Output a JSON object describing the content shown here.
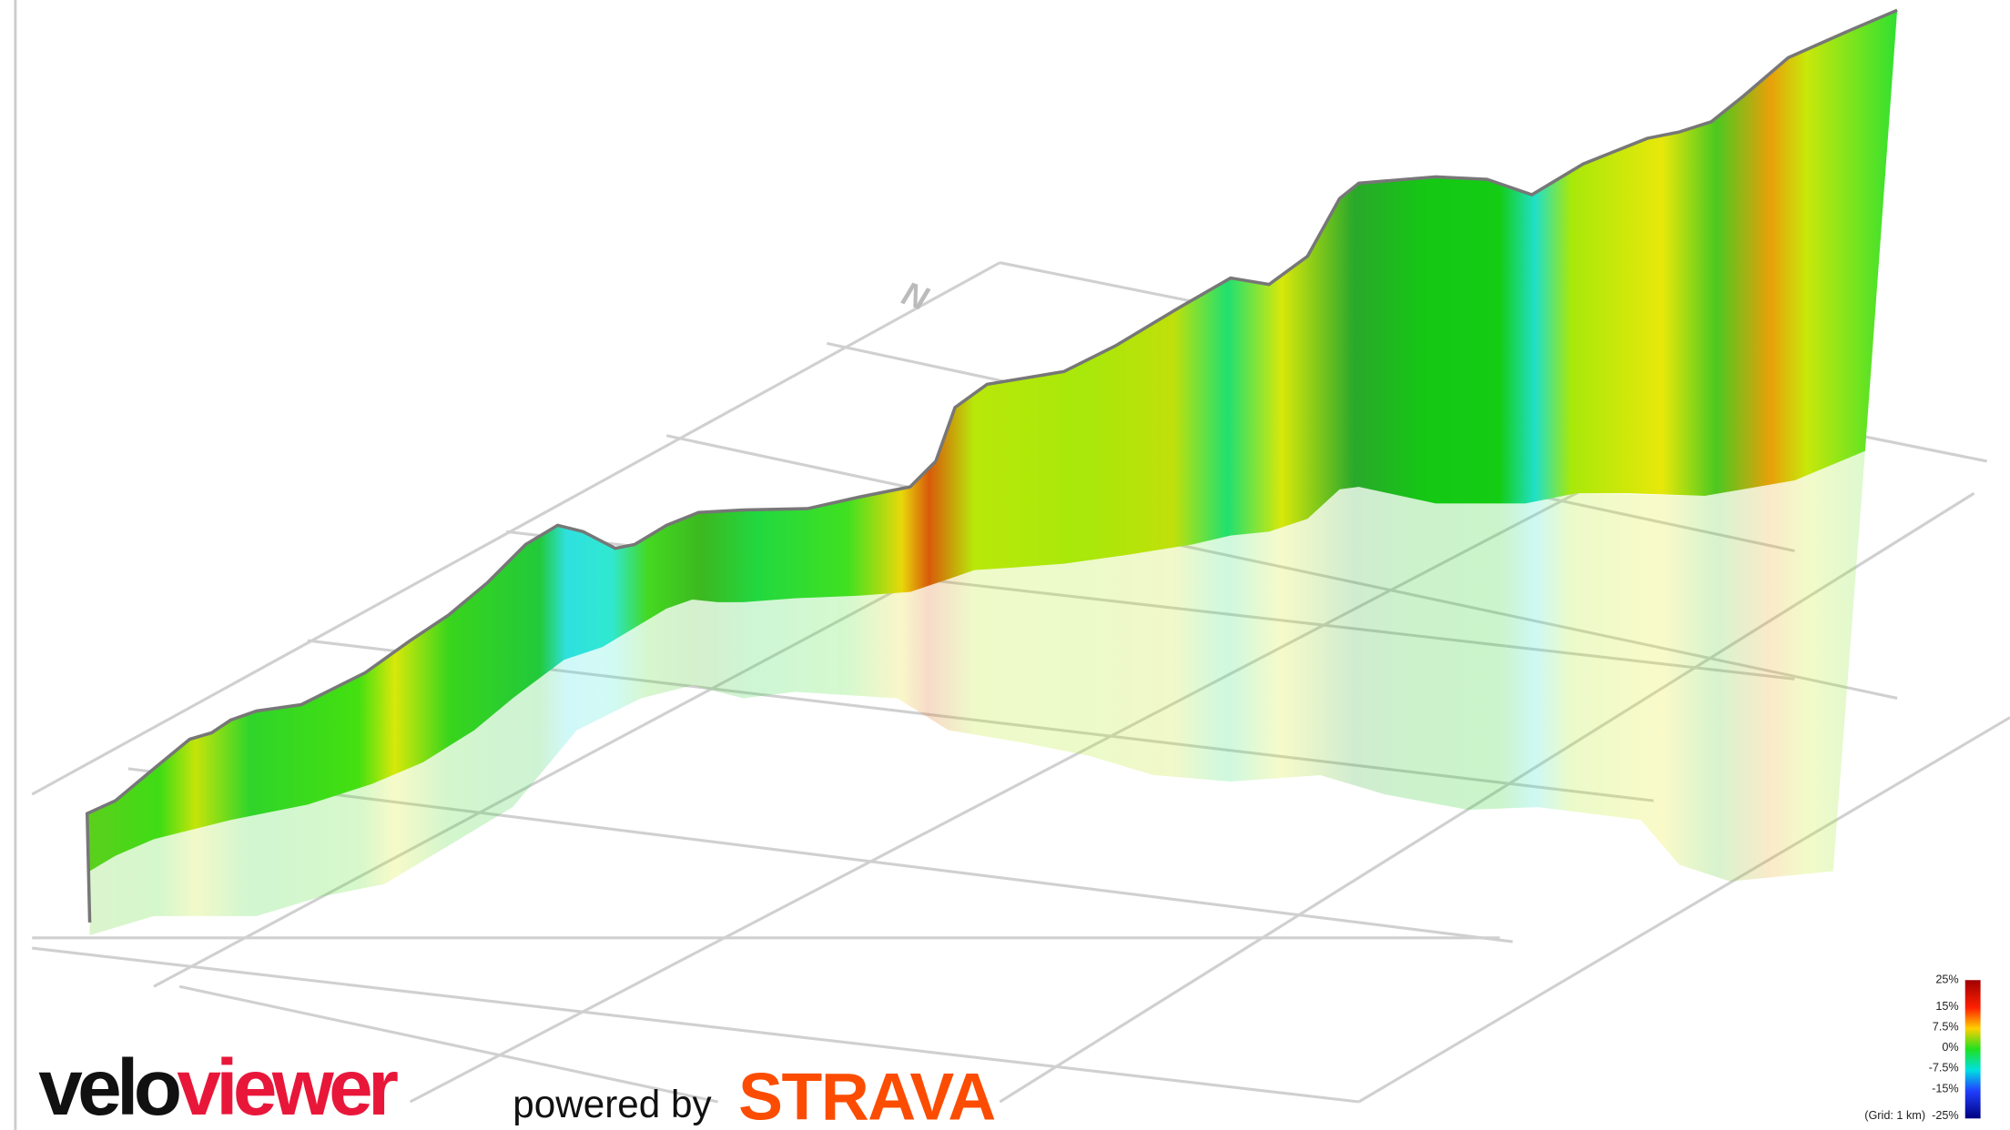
{
  "compass": "N",
  "logo": {
    "part1": "velo",
    "part2": "viewer"
  },
  "powered_by": "powered by",
  "partner": "STRAVA",
  "legend": {
    "labels": [
      "25%",
      "15%",
      "7.5%",
      "0%",
      "-7.5%",
      "-15%",
      "-25%"
    ],
    "grid_note": "(Grid: 1 km)"
  }
}
